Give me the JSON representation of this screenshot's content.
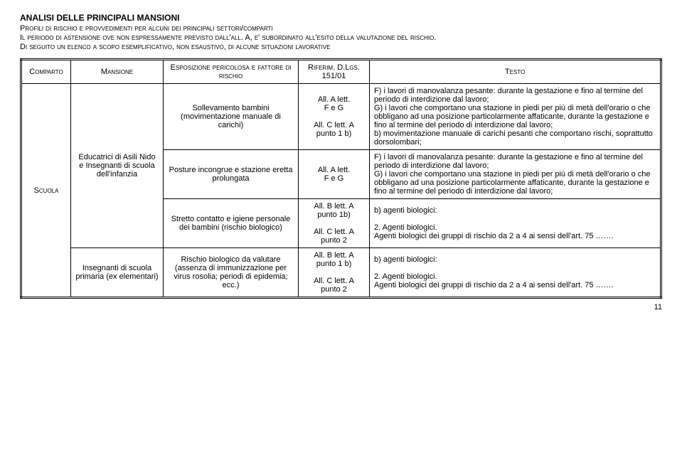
{
  "header": {
    "title": "ANALISI DELLE PRINCIPALI MANSIONI",
    "subtitle": "Profili di rischio e provvedimenti per alcuni dei principali settori/comparti",
    "line1": "Il periodo di astensione ove non espressamente previsto dall'all. A, e' subordinato all'esito della valutazione del rischio.",
    "line2": "Di seguito un elenco a scopo esemplificativo, non esaustivo, di alcune situazioni lavorative"
  },
  "columns": {
    "comparto": "Comparto",
    "mansione": "Mansione",
    "esposizione": "Esposizione pericolosa e fattore di rischio",
    "riferim": "Riferim. D.Lgs. 151/01",
    "testo": "Testo"
  },
  "comparto": "Scuola",
  "mansione1": "Educatrici di Asili Nido e Insegnanti di scuola dell'infanzia",
  "mansione2": "Insegnanti di scuola primaria (ex elementari)",
  "rows": [
    {
      "esp": "Sollevamento bambini (movimentazione manuale di carichi)",
      "rif": "All. A lett.\nF e G\n\nAll. C lett. A\npunto 1 b)",
      "testo": "F) i lavori di manovalanza pesante: durante la gestazione e fino al termine del periodo di interdizione dal lavoro;\nG) i lavori che comportano una stazione in piedi per più di metà dell'orario o che obbligano ad una posizione particolarmente affaticante, durante la gestazione e fino al termine del periodo di interdizione dal lavoro;\nb) movimentazione manuale di carichi pesanti che comportano rischi, soprattutto dorsolombari;"
    },
    {
      "esp": "Posture incongrue e stazione eretta prolungata",
      "rif": "All. A lett.\nF e G",
      "testo": "F) i lavori di manovalanza pesante: durante la gestazione e fino al termine del periodo di interdizione dal lavoro;\nG) i lavori che comportano una stazione in piedi per più di metà dell'orario o che obbligano ad una posizione particolarmente affaticante, durante la gestazione e fino al termine del periodo di interdizione dal lavoro;"
    },
    {
      "esp": "Stretto contatto e igiene personale dei bambini (rischio biologico)",
      "rif": "All. B lett. A\npunto 1b)\n\nAll. C lett. A\npunto 2",
      "testo": "b) agenti biologici:\n\n2. Agenti biologici.\nAgenti biologici dei gruppi di rischio da 2 a 4 ai sensi dell'art. 75 ……."
    },
    {
      "esp": "Rischio biologico da valutare (assenza di immunizzazione per virus rosolia; periodi di epidemia; ecc.)",
      "rif": "All. B lett. A\npunto 1 b)\n\nAll. C lett. A\npunto 2",
      "testo": "b) agenti biologici:\n\n2. Agenti biologici.\nAgenti biologici dei gruppi di rischio da 2 a 4 ai sensi dell'art. 75 ……."
    }
  ],
  "page": "11"
}
